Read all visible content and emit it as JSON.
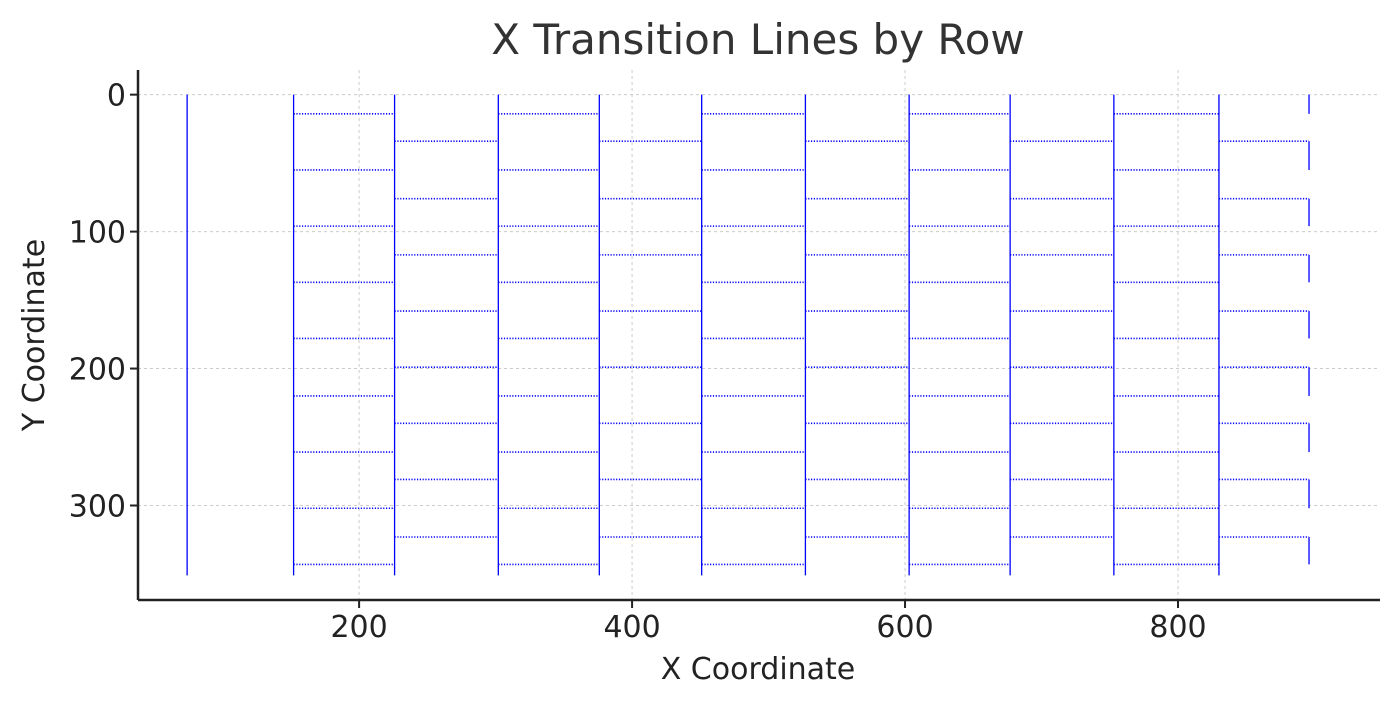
{
  "chart_data": {
    "type": "line",
    "title": "X Transition Lines by Row",
    "xlabel": "X Coordinate",
    "ylabel": "Y Coordinate",
    "xlim": [
      38,
      948
    ],
    "ylim": [
      -18,
      369
    ],
    "y_inverted": true,
    "grid": true,
    "legend": "none",
    "line_color": "#0000ff",
    "xticks": [
      200,
      400,
      600,
      800
    ],
    "yticks": [
      0,
      100,
      200,
      300
    ],
    "row_height": 20.6,
    "row_count": 17,
    "boundary_x": [
      74,
      152,
      226,
      302,
      376,
      451,
      527,
      603,
      677,
      753,
      830,
      896
    ],
    "vertical_lines": [
      {
        "x": 74,
        "y": [
          0,
          351
        ]
      },
      {
        "x": 152,
        "y": [
          0,
          351
        ]
      },
      {
        "x": 226,
        "y": [
          0,
          351
        ]
      },
      {
        "x": 302,
        "y": [
          0,
          351
        ]
      },
      {
        "x": 376,
        "y": [
          0,
          351
        ]
      },
      {
        "x": 451,
        "y": [
          0,
          351
        ]
      },
      {
        "x": 527,
        "y": [
          0,
          351
        ]
      },
      {
        "x": 603,
        "y": [
          0,
          351
        ]
      },
      {
        "x": 677,
        "y": [
          0,
          351
        ]
      },
      {
        "x": 753,
        "y": [
          0,
          351
        ]
      },
      {
        "x": 830,
        "y": [
          0,
          351
        ]
      },
      {
        "x": 896,
        "y": [
          0,
          14
        ]
      },
      {
        "x": 896,
        "y": [
          34,
          55
        ]
      },
      {
        "x": 896,
        "y": [
          76,
          96
        ]
      },
      {
        "x": 896,
        "y": [
          117,
          137
        ]
      },
      {
        "x": 896,
        "y": [
          158,
          178
        ]
      },
      {
        "x": 896,
        "y": [
          199,
          220
        ]
      },
      {
        "x": 896,
        "y": [
          240,
          261
        ]
      },
      {
        "x": 896,
        "y": [
          281,
          302
        ]
      },
      {
        "x": 896,
        "y": [
          323,
          343
        ]
      }
    ],
    "odd_row_segments": [
      [
        152,
        226
      ],
      [
        302,
        376
      ],
      [
        451,
        527
      ],
      [
        603,
        677
      ],
      [
        753,
        830
      ]
    ],
    "even_row_segments": [
      [
        226,
        302
      ],
      [
        376,
        451
      ],
      [
        527,
        603
      ],
      [
        677,
        753
      ],
      [
        830,
        896
      ]
    ],
    "odd_row_y": [
      14,
      55,
      96,
      137,
      178,
      220,
      261,
      302,
      343
    ],
    "even_row_y": [
      34,
      76,
      117,
      158,
      199,
      240,
      281,
      323
    ]
  }
}
